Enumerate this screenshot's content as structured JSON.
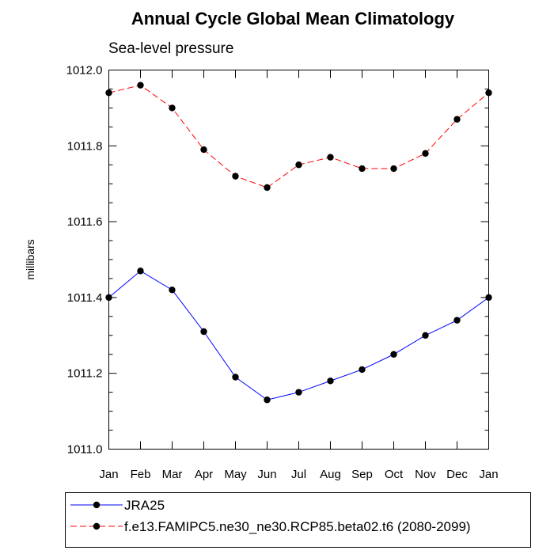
{
  "chart_data": {
    "type": "line",
    "title": "Annual Cycle Global Mean Climatology",
    "subtitle": "Sea-level pressure",
    "xlabel": "",
    "ylabel": "millibars",
    "categories": [
      "Jan",
      "Feb",
      "Mar",
      "Apr",
      "May",
      "Jun",
      "Jul",
      "Aug",
      "Sep",
      "Oct",
      "Nov",
      "Dec",
      "Jan"
    ],
    "ylim": [
      1011.0,
      1012.0
    ],
    "yticks": [
      "1011.0",
      "1011.2",
      "1011.4",
      "1011.6",
      "1011.8",
      "1012.0"
    ],
    "grid": false,
    "legend_position": "bottom",
    "series": [
      {
        "name": "JRA25",
        "color": "#0000ff",
        "line_style": "solid",
        "marker": "filled-circle",
        "values": [
          1011.4,
          1011.47,
          1011.42,
          1011.31,
          1011.19,
          1011.13,
          1011.15,
          1011.18,
          1011.21,
          1011.25,
          1011.3,
          1011.34,
          1011.4
        ]
      },
      {
        "name": "f.e13.FAMIPC5.ne30_ne30.RCP85.beta02.t6 (2080-2099)",
        "color": "#ff0000",
        "line_style": "dashed",
        "marker": "filled-circle",
        "values": [
          1011.94,
          1011.96,
          1011.9,
          1011.79,
          1011.72,
          1011.69,
          1011.75,
          1011.77,
          1011.74,
          1011.74,
          1011.78,
          1011.87,
          1011.94
        ]
      }
    ]
  }
}
